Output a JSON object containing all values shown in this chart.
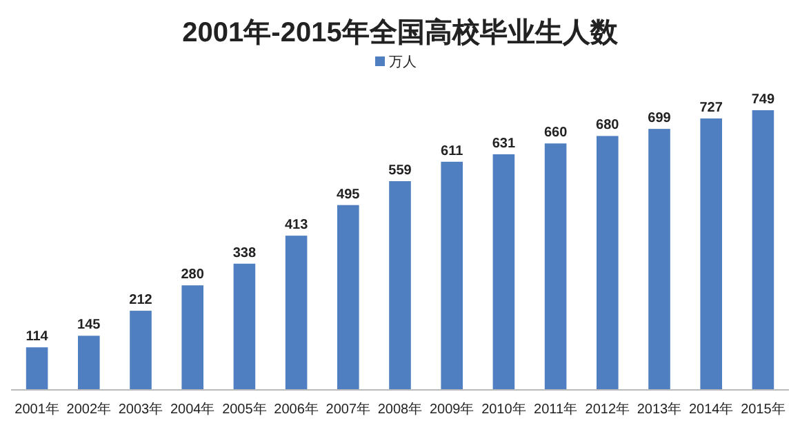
{
  "chart_data": {
    "type": "bar",
    "title": "2001年-2015年全国高校毕业生人数",
    "categories": [
      "2001年",
      "2002年",
      "2003年",
      "2004年",
      "2005年",
      "2006年",
      "2007年",
      "2008年",
      "2009年",
      "2010年",
      "2011年",
      "2012年",
      "2013年",
      "2014年",
      "2015年"
    ],
    "series": [
      {
        "name": "万人",
        "color": "#4f7fc0",
        "values": [
          114,
          145,
          212,
          280,
          338,
          413,
          495,
          559,
          611,
          631,
          660,
          680,
          699,
          727,
          749
        ]
      }
    ],
    "data_labels": true,
    "legend": "top"
  }
}
